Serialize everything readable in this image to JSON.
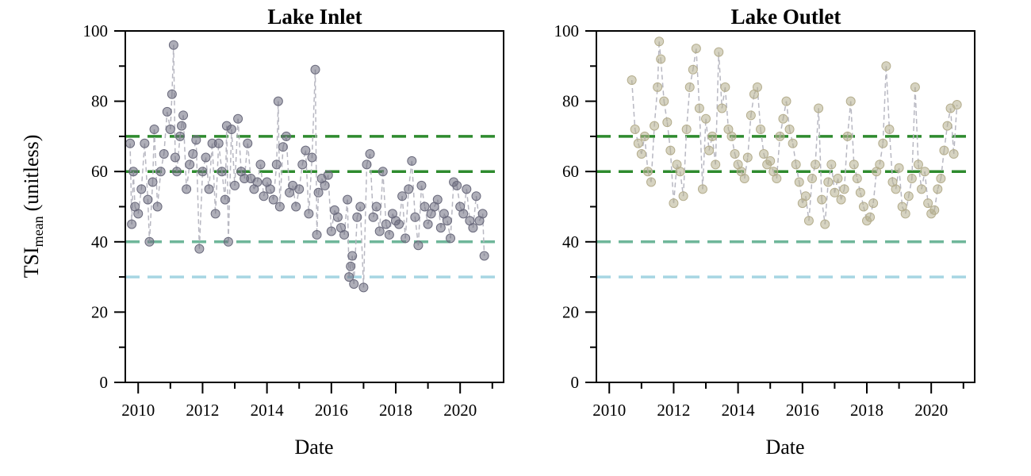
{
  "chart_data": {
    "type": "scatter",
    "ylabel": "TSI",
    "ylabel_subscript": "mean",
    "ylabel_unit": "(unitless)",
    "colors": {
      "ref_70": "#2e8b2e",
      "ref_60": "#2e8b2e",
      "ref_40": "#6fb79a",
      "ref_30": "#a7d6e3",
      "inlet_points": "#6b6b7d",
      "outlet_points": "#b5ae8e",
      "connector": "#b8b8c2"
    },
    "reference_lines": [
      70,
      60,
      40,
      30
    ],
    "grid": false,
    "panels": [
      {
        "title": "Lake Inlet",
        "xlabel": "Date",
        "xlim": [
          2009.6,
          2021.35
        ],
        "ylim": [
          0,
          100
        ],
        "xticks": [
          "2010",
          "2012",
          "2014",
          "2016",
          "2018",
          "2020"
        ],
        "yticks": [
          "0",
          "20",
          "40",
          "60",
          "80",
          "100"
        ],
        "series": [
          {
            "color": "#6b6b7d",
            "x": [
              2009.75,
              2009.8,
              2009.85,
              2009.9,
              2010.0,
              2010.1,
              2010.2,
              2010.3,
              2010.35,
              2010.45,
              2010.5,
              2010.6,
              2010.7,
              2010.8,
              2010.9,
              2011.0,
              2011.05,
              2011.1,
              2011.15,
              2011.2,
              2011.3,
              2011.35,
              2011.4,
              2011.5,
              2011.6,
              2011.7,
              2011.8,
              2011.9,
              2012.0,
              2012.1,
              2012.2,
              2012.3,
              2012.4,
              2012.5,
              2012.6,
              2012.7,
              2012.75,
              2012.8,
              2012.9,
              2013.0,
              2013.1,
              2013.2,
              2013.3,
              2013.4,
              2013.5,
              2013.6,
              2013.7,
              2013.8,
              2013.9,
              2014.0,
              2014.1,
              2014.2,
              2014.3,
              2014.35,
              2014.4,
              2014.5,
              2014.6,
              2014.7,
              2014.8,
              2014.9,
              2015.0,
              2015.1,
              2015.2,
              2015.3,
              2015.4,
              2015.5,
              2015.55,
              2015.6,
              2015.7,
              2015.8,
              2015.9,
              2016.0,
              2016.1,
              2016.2,
              2016.3,
              2016.4,
              2016.5,
              2016.55,
              2016.6,
              2016.65,
              2016.7,
              2016.8,
              2016.9,
              2017.0,
              2017.1,
              2017.2,
              2017.3,
              2017.4,
              2017.5,
              2017.6,
              2017.7,
              2017.8,
              2017.9,
              2018.0,
              2018.1,
              2018.2,
              2018.3,
              2018.4,
              2018.5,
              2018.6,
              2018.7,
              2018.8,
              2018.9,
              2019.0,
              2019.1,
              2019.2,
              2019.3,
              2019.4,
              2019.5,
              2019.6,
              2019.7,
              2019.8,
              2019.9,
              2020.0,
              2020.1,
              2020.2,
              2020.3,
              2020.4,
              2020.5,
              2020.6,
              2020.7,
              2020.75
            ],
            "y": [
              68,
              45,
              60,
              50,
              48,
              55,
              68,
              52,
              40,
              57,
              72,
              50,
              60,
              65,
              77,
              72,
              82,
              96,
              64,
              60,
              70,
              73,
              76,
              55,
              62,
              65,
              69,
              38,
              60,
              64,
              55,
              68,
              48,
              68,
              60,
              52,
              73,
              40,
              72,
              56,
              75,
              60,
              58,
              68,
              58,
              55,
              57,
              62,
              53,
              57,
              55,
              52,
              62,
              80,
              50,
              67,
              70,
              54,
              56,
              50,
              55,
              62,
              66,
              48,
              64,
              89,
              42,
              54,
              58,
              56,
              59,
              43,
              49,
              47,
              44,
              42,
              52,
              30,
              33,
              36,
              28,
              47,
              50,
              27,
              62,
              65,
              47,
              50,
              43,
              60,
              45,
              42,
              48,
              46,
              45,
              53,
              41,
              55,
              63,
              47,
              39,
              56,
              50,
              45,
              48,
              50,
              52,
              44,
              48,
              46,
              41,
              57,
              56,
              50,
              48,
              55,
              46,
              44,
              53,
              46,
              48,
              36
            ]
          }
        ]
      },
      {
        "title": "Lake Outlet",
        "xlabel": "Date",
        "xlim": [
          2009.6,
          2021.35
        ],
        "ylim": [
          0,
          100
        ],
        "xticks": [
          "2010",
          "2012",
          "2014",
          "2016",
          "2018",
          "2020"
        ],
        "yticks": [
          "0",
          "20",
          "40",
          "60",
          "80",
          "100"
        ],
        "series": [
          {
            "color": "#b5ae8e",
            "x": [
              2010.7,
              2010.8,
              2010.9,
              2011.0,
              2011.1,
              2011.2,
              2011.3,
              2011.4,
              2011.5,
              2011.55,
              2011.6,
              2011.7,
              2011.8,
              2011.9,
              2012.0,
              2012.1,
              2012.2,
              2012.3,
              2012.4,
              2012.5,
              2012.6,
              2012.7,
              2012.8,
              2012.9,
              2013.0,
              2013.1,
              2013.2,
              2013.3,
              2013.4,
              2013.5,
              2013.6,
              2013.7,
              2013.8,
              2013.9,
              2014.0,
              2014.1,
              2014.2,
              2014.3,
              2014.4,
              2014.5,
              2014.6,
              2014.7,
              2014.8,
              2014.9,
              2015.0,
              2015.1,
              2015.2,
              2015.3,
              2015.4,
              2015.5,
              2015.6,
              2015.7,
              2015.8,
              2015.9,
              2016.0,
              2016.1,
              2016.2,
              2016.3,
              2016.4,
              2016.5,
              2016.6,
              2016.7,
              2016.8,
              2016.9,
              2017.0,
              2017.1,
              2017.2,
              2017.3,
              2017.4,
              2017.5,
              2017.6,
              2017.7,
              2017.8,
              2017.9,
              2018.0,
              2018.1,
              2018.2,
              2018.3,
              2018.4,
              2018.5,
              2018.6,
              2018.7,
              2018.8,
              2018.9,
              2019.0,
              2019.1,
              2019.2,
              2019.3,
              2019.4,
              2019.5,
              2019.6,
              2019.7,
              2019.8,
              2019.9,
              2020.0,
              2020.1,
              2020.2,
              2020.3,
              2020.4,
              2020.5,
              2020.6,
              2020.7,
              2020.8
            ],
            "y": [
              86,
              72,
              68,
              65,
              70,
              60,
              57,
              73,
              84,
              97,
              92,
              80,
              74,
              66,
              51,
              62,
              60,
              53,
              72,
              84,
              89,
              95,
              78,
              55,
              75,
              66,
              70,
              62,
              94,
              78,
              84,
              72,
              70,
              65,
              62,
              60,
              58,
              64,
              76,
              82,
              84,
              72,
              65,
              62,
              63,
              60,
              58,
              70,
              75,
              80,
              72,
              68,
              62,
              57,
              51,
              53,
              46,
              58,
              62,
              78,
              52,
              45,
              57,
              62,
              54,
              58,
              52,
              55,
              70,
              80,
              62,
              58,
              54,
              50,
              46,
              47,
              51,
              60,
              62,
              68,
              90,
              72,
              57,
              55,
              61,
              50,
              48,
              53,
              58,
              84,
              62,
              55,
              60,
              51,
              48,
              49,
              55,
              58,
              66,
              73,
              78,
              65,
              79
            ]
          }
        ]
      }
    ]
  }
}
